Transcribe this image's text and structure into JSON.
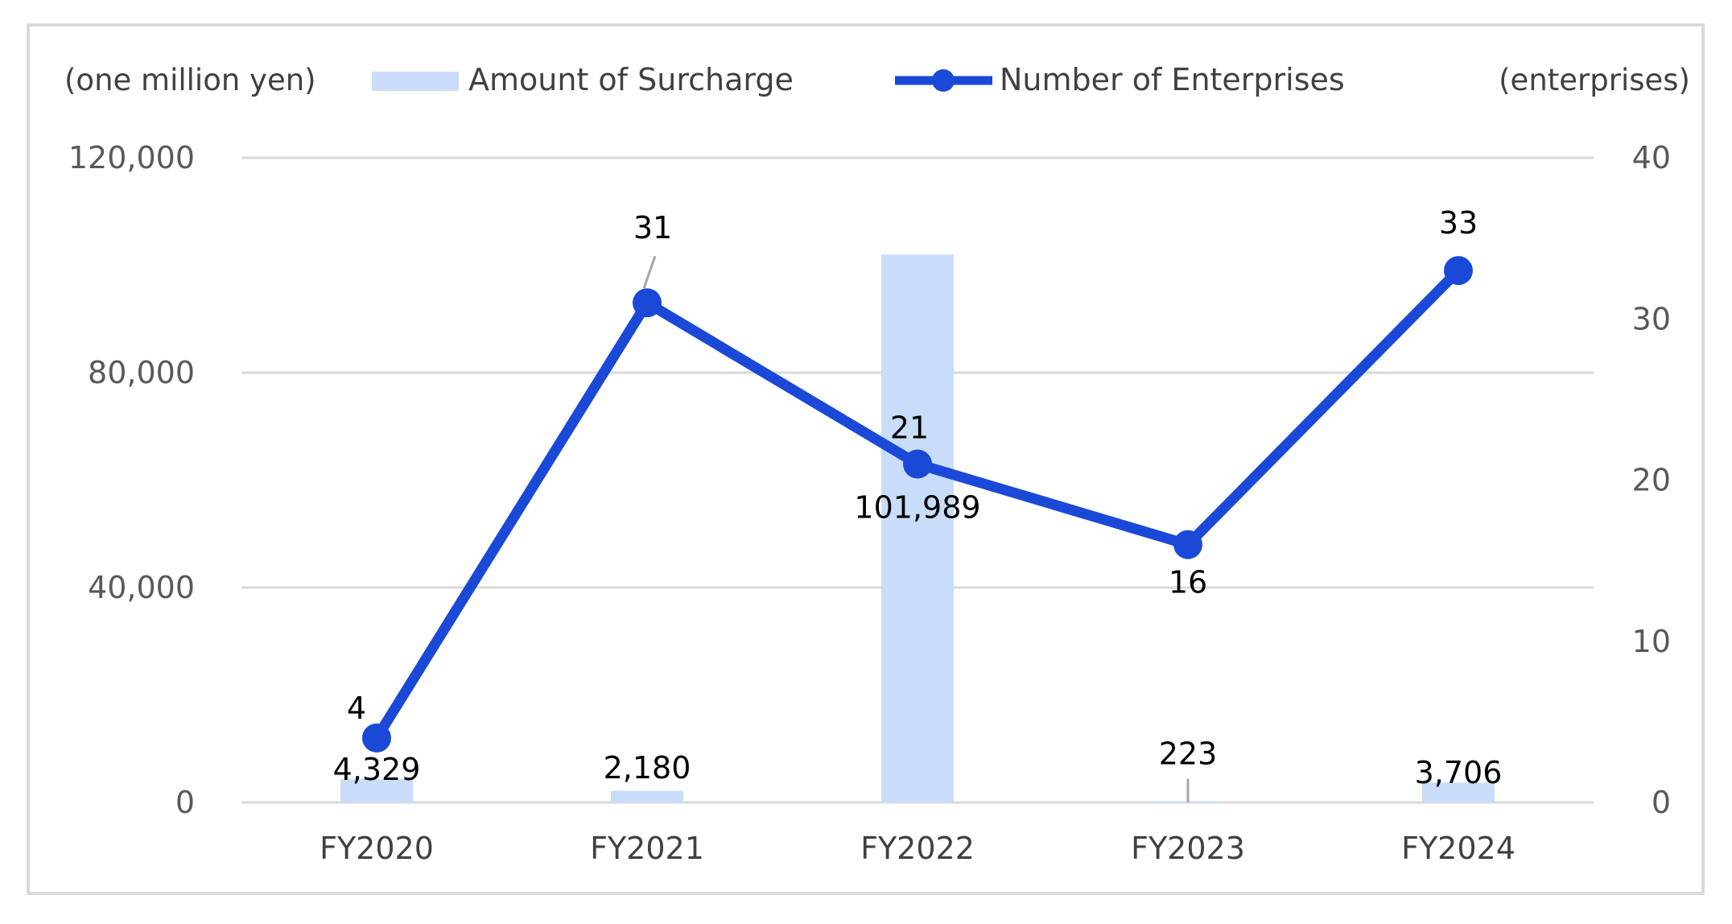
{
  "chart_data": {
    "type": "bar",
    "categories": [
      "FY2020",
      "FY2021",
      "FY2022",
      "FY2023",
      "FY2024"
    ],
    "series": [
      {
        "name": "Amount of Surcharge",
        "kind": "bar",
        "axis": "left",
        "values": [
          4329,
          2180,
          101989,
          223,
          3706
        ],
        "labels": [
          "4,329",
          "2,180",
          "101,989",
          "223",
          "3,706"
        ],
        "color": "#c9ddfb"
      },
      {
        "name": "Number of Enterprises",
        "kind": "line",
        "axis": "right",
        "values": [
          4,
          31,
          21,
          16,
          33
        ],
        "labels": [
          "4",
          "31",
          "21",
          "16",
          "33"
        ],
        "color": "#1a49d8"
      }
    ],
    "left_axis": {
      "unit": "(one million yen)",
      "ylim": [
        0,
        120000
      ],
      "ticks": [
        0,
        40000,
        80000,
        120000
      ],
      "tick_labels": [
        "0",
        "40,000",
        "80,000",
        "120,000"
      ]
    },
    "right_axis": {
      "unit": "(enterprises)",
      "ylim": [
        0,
        40
      ],
      "ticks": [
        0,
        10,
        20,
        30,
        40
      ],
      "tick_labels": [
        "0",
        "10",
        "20",
        "30",
        "40"
      ]
    },
    "grid": true,
    "gridline_color": "#d9d9d9",
    "legend_position": "top"
  }
}
